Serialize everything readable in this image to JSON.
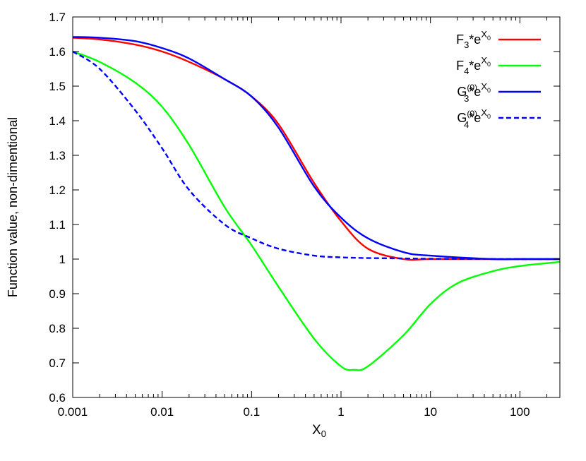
{
  "chart_data": {
    "type": "line",
    "xscale": "log",
    "xlim": [
      0.001,
      280
    ],
    "ylim": [
      0.6,
      1.7
    ],
    "grid": false,
    "legend_position": "top-right",
    "xlabel": {
      "base": "X",
      "sub": "0"
    },
    "ylabel": "Function value, non-dimentional",
    "xticks": [
      {
        "value": 0.001,
        "label": "0.001"
      },
      {
        "value": 0.01,
        "label": "0.01"
      },
      {
        "value": 0.1,
        "label": "0.1"
      },
      {
        "value": 1,
        "label": "1"
      },
      {
        "value": 10,
        "label": "10"
      },
      {
        "value": 100,
        "label": "100"
      }
    ],
    "yticks": [
      {
        "value": 0.6,
        "label": "0.6"
      },
      {
        "value": 0.7,
        "label": "0.7"
      },
      {
        "value": 0.8,
        "label": "0.8"
      },
      {
        "value": 0.9,
        "label": "0.9"
      },
      {
        "value": 1.0,
        "label": "1"
      },
      {
        "value": 1.1,
        "label": "1.1"
      },
      {
        "value": 1.2,
        "label": "1.2"
      },
      {
        "value": 1.3,
        "label": "1.3"
      },
      {
        "value": 1.4,
        "label": "1.4"
      },
      {
        "value": 1.5,
        "label": "1.5"
      },
      {
        "value": 1.6,
        "label": "1.6"
      },
      {
        "value": 1.7,
        "label": "1.7"
      }
    ],
    "series": [
      {
        "key": "f3",
        "legend": {
          "main": "F",
          "sub": "3",
          "sup": "",
          "tail": "*e",
          "exp": "X",
          "exp_sub": "0"
        },
        "color": "#ff0000",
        "dash": "solid",
        "x": [
          0.001,
          0.002,
          0.005,
          0.01,
          0.02,
          0.05,
          0.1,
          0.2,
          0.5,
          1,
          2,
          5,
          10,
          50,
          100,
          280
        ],
        "y": [
          1.64,
          1.635,
          1.62,
          1.6,
          1.57,
          1.52,
          1.47,
          1.39,
          1.22,
          1.11,
          1.03,
          1.0,
          1.0,
          1.0,
          1.0,
          1.0
        ]
      },
      {
        "key": "f4",
        "legend": {
          "main": "F",
          "sub": "4",
          "sup": "",
          "tail": "*e",
          "exp": "X",
          "exp_sub": "0"
        },
        "color": "#00ff00",
        "dash": "solid",
        "x": [
          0.001,
          0.002,
          0.005,
          0.01,
          0.02,
          0.05,
          0.1,
          0.2,
          0.5,
          1,
          1.4,
          2,
          5,
          10,
          20,
          50,
          100,
          280
        ],
        "y": [
          1.6,
          1.57,
          1.51,
          1.44,
          1.33,
          1.15,
          1.04,
          0.92,
          0.77,
          0.69,
          0.68,
          0.69,
          0.78,
          0.87,
          0.93,
          0.965,
          0.98,
          0.992
        ]
      },
      {
        "key": "g3",
        "legend": {
          "main": "G",
          "sub": "3",
          "sup": "(0)",
          "tail": "*e",
          "exp": "X",
          "exp_sub": "0"
        },
        "color": "#0000ff",
        "dash": "solid",
        "x": [
          0.001,
          0.002,
          0.005,
          0.01,
          0.02,
          0.05,
          0.1,
          0.2,
          0.5,
          1,
          2,
          5,
          10,
          50,
          100,
          280
        ],
        "y": [
          1.642,
          1.64,
          1.63,
          1.61,
          1.58,
          1.52,
          1.47,
          1.38,
          1.21,
          1.12,
          1.06,
          1.02,
          1.01,
          1.0,
          1.0,
          1.0
        ]
      },
      {
        "key": "g4",
        "legend": {
          "main": "G",
          "sub": "4",
          "sup": "(0)",
          "tail": "*e",
          "exp": "X",
          "exp_sub": "0"
        },
        "color": "#0000ff",
        "dash": "dashed",
        "x": [
          0.001,
          0.002,
          0.005,
          0.01,
          0.02,
          0.05,
          0.1,
          0.2,
          0.5,
          1,
          2,
          5,
          10,
          100,
          280
        ],
        "y": [
          1.6,
          1.55,
          1.43,
          1.32,
          1.2,
          1.1,
          1.06,
          1.03,
          1.01,
          1.005,
          1.003,
          1.002,
          1.001,
          1.0,
          1.0
        ]
      }
    ]
  }
}
